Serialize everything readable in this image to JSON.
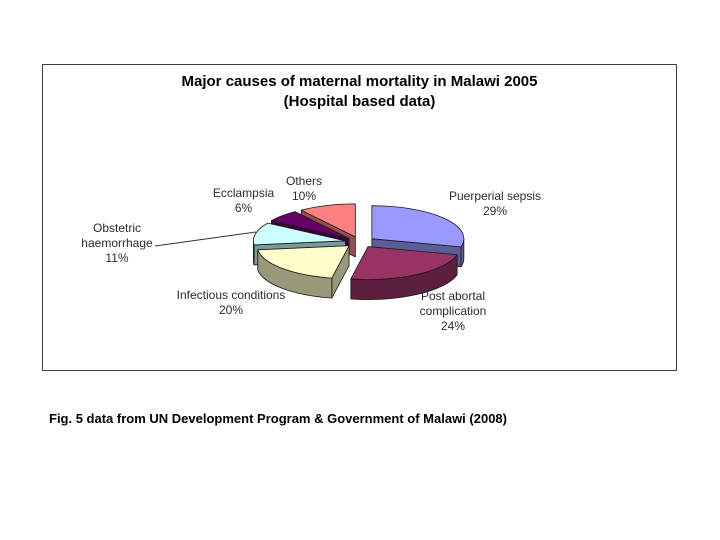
{
  "page": {
    "background": "#ffffff"
  },
  "chart_box": {
    "background": "#ffffff",
    "border_color": "#404040"
  },
  "chart_data": {
    "type": "pie",
    "style": "3d-exploded-pie",
    "title_line1": "Major causes of maternal mortality in Malawi 2005",
    "title_line2": "(Hospital based data)",
    "start_angle_deg": 0,
    "direction": "clockwise",
    "legend_position": "none",
    "data_labels": "category-name-and-percentage",
    "slices": [
      {
        "label": "Puerperial sepsis",
        "pct": 29,
        "pct_label": "29%",
        "color": "#9999FF"
      },
      {
        "label": "Post abortal complication",
        "pct": 24,
        "pct_label": "24%",
        "color": "#993366"
      },
      {
        "label": "Infectious conditions",
        "pct": 20,
        "pct_label": "20%",
        "color": "#FFFFCC"
      },
      {
        "label": "Obstetric haemorrhage",
        "pct": 11,
        "pct_label": "11%",
        "color": "#CCFFFF"
      },
      {
        "label": "Ecclampsia",
        "pct": 6,
        "pct_label": "6%",
        "color": "#660066"
      },
      {
        "label": "Others",
        "pct": 10,
        "pct_label": "10%",
        "color": "#FF8080"
      }
    ]
  },
  "caption": {
    "text": "Fig. 5 data from UN Development Program & Government of Malawi (2008)"
  }
}
